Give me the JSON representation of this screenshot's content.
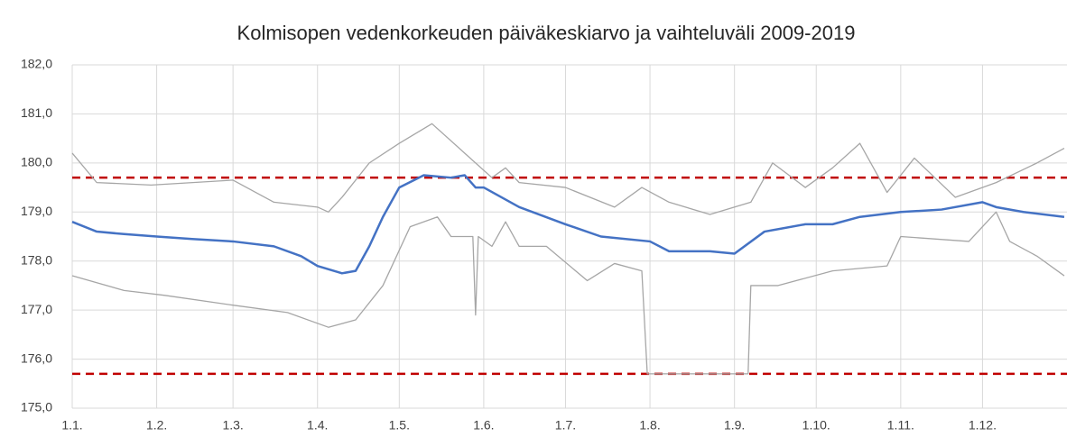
{
  "chart_data": {
    "type": "line",
    "title": "Kolmisopen vedenkorkeuden päiväkeskiarvo ja vaihteluväli 2009-2019",
    "xlim": [
      1,
      366
    ],
    "xticks": [
      {
        "value": 1,
        "label": "1.1."
      },
      {
        "value": 32,
        "label": "1.2."
      },
      {
        "value": 60,
        "label": "1.3."
      },
      {
        "value": 91,
        "label": "1.4."
      },
      {
        "value": 121,
        "label": "1.5."
      },
      {
        "value": 152,
        "label": "1.6."
      },
      {
        "value": 182,
        "label": "1.7."
      },
      {
        "value": 213,
        "label": "1.8."
      },
      {
        "value": 244,
        "label": "1.9."
      },
      {
        "value": 274,
        "label": "1.10."
      },
      {
        "value": 305,
        "label": "1.11."
      },
      {
        "value": 335,
        "label": "1.12."
      }
    ],
    "ylim": [
      175,
      182
    ],
    "yticks": [
      {
        "value": 175,
        "label": "175,0"
      },
      {
        "value": 176,
        "label": "176,0"
      },
      {
        "value": 177,
        "label": "177,0"
      },
      {
        "value": 178,
        "label": "178,0"
      },
      {
        "value": 179,
        "label": "179,0"
      },
      {
        "value": 180,
        "label": "180,0"
      },
      {
        "value": 181,
        "label": "181,0"
      },
      {
        "value": 182,
        "label": "182,0"
      }
    ],
    "grid": true,
    "series": [
      {
        "color": "#a6a6a6",
        "width": 1.3,
        "x": [
          1,
          10,
          30,
          60,
          75,
          91,
          95,
          100,
          110,
          121,
          133,
          145,
          155,
          160,
          165,
          182,
          200,
          210,
          220,
          235,
          250,
          258,
          270,
          280,
          290,
          300,
          310,
          325,
          340,
          355,
          365
        ],
        "values": [
          180.2,
          179.6,
          179.55,
          179.65,
          179.2,
          179.1,
          179.0,
          179.3,
          180.0,
          180.4,
          180.8,
          180.2,
          179.7,
          179.9,
          179.6,
          179.5,
          179.1,
          179.5,
          179.2,
          178.95,
          179.2,
          180.0,
          179.5,
          179.9,
          180.4,
          179.4,
          180.1,
          179.3,
          179.6,
          180.0,
          180.3
        ]
      },
      {
        "color": "#a6a6a6",
        "width": 1.3,
        "x": [
          1,
          20,
          35,
          60,
          80,
          95,
          105,
          115,
          125,
          135,
          140,
          148,
          149,
          150,
          155,
          160,
          165,
          175,
          190,
          200,
          210,
          212,
          240,
          249,
          250,
          260,
          280,
          300,
          305,
          330,
          340,
          345,
          355,
          365
        ],
        "values": [
          177.7,
          177.4,
          177.3,
          177.1,
          176.95,
          176.65,
          176.8,
          177.5,
          178.7,
          178.9,
          178.5,
          178.5,
          176.9,
          178.5,
          178.3,
          178.8,
          178.3,
          178.3,
          177.6,
          177.95,
          177.8,
          175.7,
          175.7,
          175.7,
          177.5,
          177.5,
          177.8,
          177.9,
          178.5,
          178.4,
          179.0,
          178.4,
          178.1,
          177.7
        ]
      },
      {
        "color": "#4472c4",
        "width": 2.5,
        "x": [
          1,
          10,
          20,
          32,
          45,
          60,
          75,
          85,
          91,
          100,
          105,
          110,
          115,
          121,
          130,
          140,
          145,
          149,
          152,
          165,
          182,
          195,
          213,
          220,
          235,
          244,
          255,
          270,
          280,
          290,
          305,
          320,
          335,
          340,
          350,
          365
        ],
        "values": [
          178.8,
          178.6,
          178.55,
          178.5,
          178.45,
          178.4,
          178.3,
          178.1,
          177.9,
          177.75,
          177.8,
          178.3,
          178.9,
          179.5,
          179.75,
          179.7,
          179.75,
          179.5,
          179.5,
          179.1,
          178.75,
          178.5,
          178.4,
          178.2,
          178.2,
          178.15,
          178.6,
          178.75,
          178.75,
          178.9,
          179.0,
          179.05,
          179.2,
          179.1,
          179.0,
          178.9
        ]
      }
    ],
    "reference_lines": [
      {
        "value": 179.7,
        "color": "#c00000"
      },
      {
        "value": 175.7,
        "color": "#c00000"
      }
    ]
  }
}
